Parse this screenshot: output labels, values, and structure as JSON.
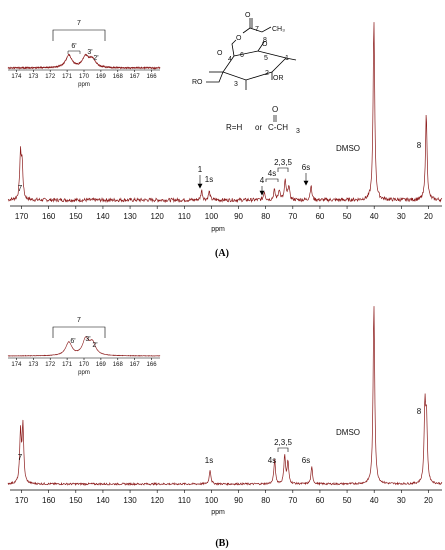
{
  "spectrum_color": "#8b1a1a",
  "chart_data": [
    {
      "type": "line",
      "panel": "(A)",
      "xlabel": "ppm",
      "xlim": [
        175,
        15
      ],
      "x_reversed": true,
      "x_ticks": [
        170,
        160,
        150,
        140,
        130,
        120,
        110,
        100,
        90,
        80,
        70,
        60,
        50,
        40,
        30,
        20
      ],
      "grid": false,
      "peaks": [
        {
          "label": "7",
          "x": 170.4,
          "height": 0.36
        },
        {
          "label": "",
          "x": 169.8,
          "height": 0.28
        },
        {
          "label": "1",
          "x": 103.6,
          "height": 0.08
        },
        {
          "label": "1s",
          "x": 100.8,
          "height": 0.07
        },
        {
          "label": "4",
          "x": 80.5,
          "height": 0.07
        },
        {
          "label": "4s",
          "x": 76.8,
          "height": 0.08
        },
        {
          "label": "",
          "x": 75.0,
          "height": 0.09
        },
        {
          "label": "2,3,5",
          "x": 72.8,
          "height": 0.16
        },
        {
          "label": "",
          "x": 71.5,
          "height": 0.12
        },
        {
          "label": "6s",
          "x": 63.3,
          "height": 0.12
        },
        {
          "label": "DMSO",
          "x": 40.1,
          "height": 1.5
        },
        {
          "label": "8",
          "x": 20.8,
          "height": 0.72
        }
      ],
      "annotations": [
        "1",
        "1s",
        "4",
        "4s",
        "2,3,5",
        "6s",
        "DMSO",
        "8",
        "7"
      ],
      "inset": {
        "title": "7",
        "xlabel": "ppm",
        "xlim": [
          174.5,
          165.5
        ],
        "x_ticks": [
          174,
          173,
          172,
          171,
          170,
          169,
          168,
          167,
          166
        ],
        "peaks": [
          {
            "label": "6'",
            "x": 170.9,
            "height": 0.62
          },
          {
            "label": "3'",
            "x": 169.9,
            "height": 0.55
          },
          {
            "label": "2'",
            "x": 169.5,
            "height": 0.4
          }
        ]
      },
      "structure_note": {
        "line1": "R=H",
        "line2": "or",
        "carbonyl_o": "O",
        "group": "C-CH",
        "group_subscript": "3"
      }
    },
    {
      "type": "line",
      "panel": "(B)",
      "xlabel": "ppm",
      "xlim": [
        175,
        15
      ],
      "x_reversed": true,
      "x_ticks": [
        170,
        160,
        150,
        140,
        130,
        120,
        110,
        100,
        90,
        80,
        70,
        60,
        50,
        40,
        30,
        20
      ],
      "grid": false,
      "peaks": [
        {
          "label": "7",
          "x": 170.4,
          "height": 0.42
        },
        {
          "label": "",
          "x": 169.5,
          "height": 0.48
        },
        {
          "label": "1s",
          "x": 100.5,
          "height": 0.12
        },
        {
          "label": "4s",
          "x": 76.7,
          "height": 0.2
        },
        {
          "label": "2,3,5",
          "x": 73.0,
          "height": 0.24
        },
        {
          "label": "",
          "x": 71.8,
          "height": 0.18
        },
        {
          "label": "6s",
          "x": 63.0,
          "height": 0.14
        },
        {
          "label": "DMSO",
          "x": 40.1,
          "height": 1.5
        },
        {
          "label": "8",
          "x": 21.3,
          "height": 0.62
        },
        {
          "label": "",
          "x": 20.7,
          "height": 0.5
        }
      ],
      "annotations": [
        "1s",
        "4s",
        "2,3,5",
        "6s",
        "DMSO",
        "8",
        "7"
      ],
      "inset": {
        "title": "7",
        "xlabel": "ppm",
        "xlim": [
          174.5,
          165.5
        ],
        "x_ticks": [
          174,
          173,
          172,
          171,
          170,
          169,
          168,
          167,
          166
        ],
        "peaks": [
          {
            "label": "6'",
            "x": 170.9,
            "height": 0.6
          },
          {
            "label": "3'",
            "x": 169.9,
            "height": 0.72
          },
          {
            "label": "2'",
            "x": 169.5,
            "height": 0.55
          }
        ]
      }
    }
  ]
}
